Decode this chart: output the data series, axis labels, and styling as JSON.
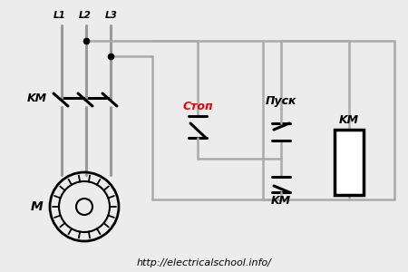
{
  "bg_color": "#ececec",
  "wire_power": "#999999",
  "wire_ctrl": "#aaaaaa",
  "black": "#000000",
  "red": "#ee0000",
  "white": "#ffffff",
  "title": "http://electricalschool.info/",
  "L1_label": "L1",
  "L2_label": "L2",
  "L3_label": "L3",
  "KM_contact_label": "KM",
  "M_label": "M",
  "Stop_label": "Стоп",
  "Start_label": "Пуск",
  "KM_hold_label": "KM",
  "KM_coil_label": "KM"
}
